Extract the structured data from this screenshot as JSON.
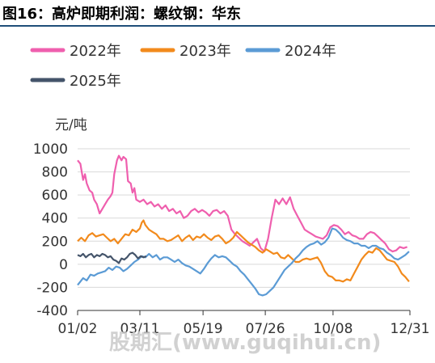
{
  "page": {
    "title": "图16：高炉即期利润：螺纹钢：华东",
    "watermark": "股期汇(www.guqihui.cn)"
  },
  "chart_data": {
    "type": "line",
    "title": "",
    "ylabel": "元/吨",
    "xlabel": "",
    "ylim": [
      -400,
      1000
    ],
    "yticks": [
      -400,
      -200,
      0,
      200,
      400,
      600,
      800,
      1000
    ],
    "xlim_day_of_year": [
      2,
      365
    ],
    "xticks": [
      {
        "label": "01/02",
        "day": 2
      },
      {
        "label": "03/11",
        "day": 70
      },
      {
        "label": "05/19",
        "day": 139
      },
      {
        "label": "07/26",
        "day": 207
      },
      {
        "label": "10/08",
        "day": 281
      },
      {
        "label": "12/31",
        "day": 365
      }
    ],
    "grid": "horizontal",
    "legend_position": "top",
    "series": [
      {
        "name": "2022年",
        "color": "#ef5fae",
        "points": [
          [
            2,
            900
          ],
          [
            5,
            870
          ],
          [
            8,
            730
          ],
          [
            10,
            780
          ],
          [
            12,
            700
          ],
          [
            15,
            640
          ],
          [
            18,
            620
          ],
          [
            20,
            560
          ],
          [
            23,
            520
          ],
          [
            26,
            440
          ],
          [
            29,
            480
          ],
          [
            32,
            520
          ],
          [
            35,
            560
          ],
          [
            38,
            590
          ],
          [
            40,
            620
          ],
          [
            42,
            780
          ],
          [
            45,
            900
          ],
          [
            47,
            940
          ],
          [
            50,
            900
          ],
          [
            52,
            930
          ],
          [
            55,
            910
          ],
          [
            57,
            720
          ],
          [
            60,
            700
          ],
          [
            62,
            620
          ],
          [
            64,
            660
          ],
          [
            66,
            560
          ],
          [
            70,
            540
          ],
          [
            74,
            560
          ],
          [
            78,
            520
          ],
          [
            82,
            540
          ],
          [
            86,
            500
          ],
          [
            90,
            520
          ],
          [
            94,
            480
          ],
          [
            98,
            510
          ],
          [
            102,
            460
          ],
          [
            106,
            480
          ],
          [
            110,
            440
          ],
          [
            114,
            460
          ],
          [
            118,
            400
          ],
          [
            122,
            420
          ],
          [
            126,
            460
          ],
          [
            130,
            480
          ],
          [
            134,
            450
          ],
          [
            138,
            470
          ],
          [
            142,
            450
          ],
          [
            146,
            420
          ],
          [
            150,
            460
          ],
          [
            154,
            470
          ],
          [
            158,
            440
          ],
          [
            162,
            460
          ],
          [
            166,
            420
          ],
          [
            170,
            300
          ],
          [
            174,
            260
          ],
          [
            178,
            230
          ],
          [
            182,
            200
          ],
          [
            186,
            180
          ],
          [
            190,
            160
          ],
          [
            194,
            190
          ],
          [
            198,
            220
          ],
          [
            202,
            140
          ],
          [
            206,
            110
          ],
          [
            210,
            220
          ],
          [
            214,
            400
          ],
          [
            218,
            560
          ],
          [
            222,
            520
          ],
          [
            226,
            570
          ],
          [
            230,
            520
          ],
          [
            234,
            580
          ],
          [
            238,
            480
          ],
          [
            242,
            420
          ],
          [
            246,
            360
          ],
          [
            250,
            300
          ],
          [
            254,
            280
          ],
          [
            258,
            260
          ],
          [
            262,
            240
          ],
          [
            266,
            230
          ],
          [
            270,
            220
          ],
          [
            274,
            250
          ],
          [
            278,
            320
          ],
          [
            282,
            340
          ],
          [
            286,
            330
          ],
          [
            290,
            300
          ],
          [
            294,
            260
          ],
          [
            298,
            280
          ],
          [
            302,
            250
          ],
          [
            306,
            240
          ],
          [
            310,
            220
          ],
          [
            314,
            220
          ],
          [
            318,
            260
          ],
          [
            322,
            280
          ],
          [
            326,
            270
          ],
          [
            330,
            240
          ],
          [
            334,
            210
          ],
          [
            338,
            180
          ],
          [
            342,
            130
          ],
          [
            346,
            110
          ],
          [
            350,
            120
          ],
          [
            354,
            150
          ],
          [
            358,
            140
          ],
          [
            362,
            150
          ]
        ]
      },
      {
        "name": "2023年",
        "color": "#f28a1c",
        "points": [
          [
            2,
            200
          ],
          [
            6,
            230
          ],
          [
            10,
            200
          ],
          [
            14,
            250
          ],
          [
            18,
            270
          ],
          [
            22,
            240
          ],
          [
            26,
            250
          ],
          [
            30,
            260
          ],
          [
            34,
            230
          ],
          [
            38,
            200
          ],
          [
            42,
            220
          ],
          [
            46,
            180
          ],
          [
            50,
            220
          ],
          [
            54,
            260
          ],
          [
            58,
            250
          ],
          [
            62,
            300
          ],
          [
            66,
            280
          ],
          [
            70,
            310
          ],
          [
            72,
            360
          ],
          [
            74,
            380
          ],
          [
            76,
            340
          ],
          [
            80,
            300
          ],
          [
            84,
            280
          ],
          [
            88,
            260
          ],
          [
            92,
            220
          ],
          [
            96,
            220
          ],
          [
            100,
            200
          ],
          [
            104,
            210
          ],
          [
            108,
            230
          ],
          [
            112,
            250
          ],
          [
            116,
            200
          ],
          [
            120,
            230
          ],
          [
            124,
            250
          ],
          [
            128,
            210
          ],
          [
            132,
            240
          ],
          [
            136,
            230
          ],
          [
            140,
            260
          ],
          [
            144,
            230
          ],
          [
            148,
            210
          ],
          [
            152,
            240
          ],
          [
            156,
            250
          ],
          [
            160,
            220
          ],
          [
            164,
            180
          ],
          [
            168,
            200
          ],
          [
            172,
            230
          ],
          [
            176,
            280
          ],
          [
            180,
            250
          ],
          [
            184,
            220
          ],
          [
            188,
            190
          ],
          [
            192,
            170
          ],
          [
            196,
            150
          ],
          [
            200,
            120
          ],
          [
            204,
            100
          ],
          [
            208,
            130
          ],
          [
            212,
            110
          ],
          [
            216,
            90
          ],
          [
            220,
            100
          ],
          [
            224,
            60
          ],
          [
            228,
            50
          ],
          [
            232,
            80
          ],
          [
            236,
            50
          ],
          [
            240,
            20
          ],
          [
            244,
            20
          ],
          [
            248,
            40
          ],
          [
            252,
            50
          ],
          [
            256,
            40
          ],
          [
            260,
            50
          ],
          [
            264,
            60
          ],
          [
            268,
            10
          ],
          [
            272,
            -60
          ],
          [
            276,
            -100
          ],
          [
            280,
            -110
          ],
          [
            284,
            -140
          ],
          [
            288,
            -140
          ],
          [
            292,
            -150
          ],
          [
            296,
            -130
          ],
          [
            300,
            -140
          ],
          [
            304,
            -80
          ],
          [
            308,
            -20
          ],
          [
            312,
            40
          ],
          [
            316,
            80
          ],
          [
            320,
            110
          ],
          [
            324,
            100
          ],
          [
            328,
            140
          ],
          [
            332,
            120
          ],
          [
            336,
            80
          ],
          [
            340,
            40
          ],
          [
            344,
            30
          ],
          [
            348,
            20
          ],
          [
            352,
            -20
          ],
          [
            356,
            -80
          ],
          [
            360,
            -110
          ],
          [
            364,
            -150
          ]
        ]
      },
      {
        "name": "2024年",
        "color": "#5b9bd5",
        "points": [
          [
            2,
            -180
          ],
          [
            5,
            -150
          ],
          [
            8,
            -120
          ],
          [
            12,
            -140
          ],
          [
            16,
            -90
          ],
          [
            20,
            -100
          ],
          [
            24,
            -80
          ],
          [
            28,
            -70
          ],
          [
            32,
            -60
          ],
          [
            36,
            -30
          ],
          [
            40,
            -50
          ],
          [
            44,
            -20
          ],
          [
            48,
            -30
          ],
          [
            52,
            -60
          ],
          [
            56,
            -40
          ],
          [
            60,
            -10
          ],
          [
            64,
            20
          ],
          [
            68,
            40
          ],
          [
            72,
            70
          ],
          [
            76,
            60
          ],
          [
            80,
            90
          ],
          [
            84,
            60
          ],
          [
            88,
            80
          ],
          [
            92,
            40
          ],
          [
            96,
            60
          ],
          [
            100,
            60
          ],
          [
            104,
            40
          ],
          [
            108,
            20
          ],
          [
            112,
            40
          ],
          [
            116,
            10
          ],
          [
            120,
            -10
          ],
          [
            124,
            -20
          ],
          [
            128,
            -40
          ],
          [
            132,
            -60
          ],
          [
            136,
            -80
          ],
          [
            140,
            -40
          ],
          [
            144,
            10
          ],
          [
            148,
            50
          ],
          [
            152,
            80
          ],
          [
            156,
            60
          ],
          [
            160,
            70
          ],
          [
            164,
            60
          ],
          [
            168,
            30
          ],
          [
            172,
            0
          ],
          [
            176,
            -20
          ],
          [
            180,
            -60
          ],
          [
            184,
            -90
          ],
          [
            188,
            -130
          ],
          [
            192,
            -170
          ],
          [
            196,
            -210
          ],
          [
            200,
            -260
          ],
          [
            204,
            -270
          ],
          [
            208,
            -260
          ],
          [
            212,
            -230
          ],
          [
            216,
            -200
          ],
          [
            220,
            -150
          ],
          [
            224,
            -100
          ],
          [
            228,
            -50
          ],
          [
            232,
            -20
          ],
          [
            236,
            10
          ],
          [
            240,
            50
          ],
          [
            244,
            80
          ],
          [
            248,
            120
          ],
          [
            252,
            150
          ],
          [
            256,
            170
          ],
          [
            260,
            180
          ],
          [
            264,
            200
          ],
          [
            268,
            170
          ],
          [
            272,
            190
          ],
          [
            276,
            230
          ],
          [
            280,
            310
          ],
          [
            284,
            300
          ],
          [
            288,
            270
          ],
          [
            292,
            230
          ],
          [
            296,
            210
          ],
          [
            300,
            200
          ],
          [
            304,
            180
          ],
          [
            308,
            180
          ],
          [
            312,
            160
          ],
          [
            316,
            160
          ],
          [
            320,
            140
          ],
          [
            324,
            160
          ],
          [
            328,
            160
          ],
          [
            332,
            140
          ],
          [
            336,
            130
          ],
          [
            340,
            100
          ],
          [
            344,
            80
          ],
          [
            348,
            50
          ],
          [
            352,
            40
          ],
          [
            356,
            60
          ],
          [
            360,
            80
          ],
          [
            364,
            110
          ]
        ]
      },
      {
        "name": "2025年",
        "color": "#44546a",
        "points": [
          [
            2,
            80
          ],
          [
            5,
            70
          ],
          [
            8,
            90
          ],
          [
            11,
            60
          ],
          [
            14,
            80
          ],
          [
            17,
            90
          ],
          [
            20,
            60
          ],
          [
            23,
            80
          ],
          [
            26,
            70
          ],
          [
            29,
            90
          ],
          [
            32,
            80
          ],
          [
            35,
            60
          ],
          [
            38,
            70
          ],
          [
            41,
            40
          ],
          [
            44,
            30
          ],
          [
            47,
            10
          ],
          [
            50,
            50
          ],
          [
            53,
            40
          ],
          [
            56,
            60
          ],
          [
            59,
            90
          ],
          [
            62,
            100
          ],
          [
            65,
            80
          ],
          [
            68,
            50
          ],
          [
            71,
            70
          ],
          [
            74,
            60
          ],
          [
            77,
            70
          ]
        ]
      }
    ]
  }
}
